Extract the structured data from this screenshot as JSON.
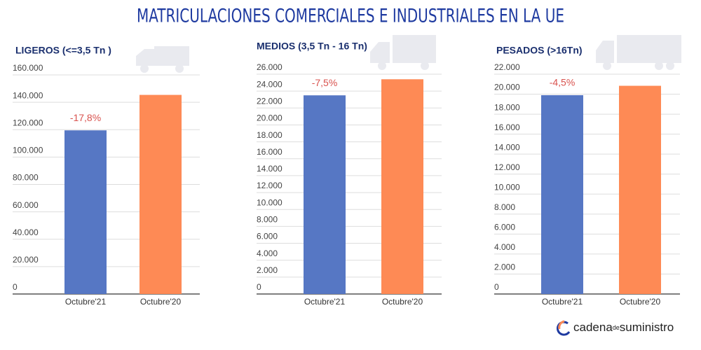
{
  "header": {
    "title": "MATRICULACIONES COMERCIALES E INDUSTRIALES EN LA UE"
  },
  "chart_data": [
    {
      "type": "bar",
      "title": "LIGEROS (<=3,5 Tn )",
      "categories": [
        "Octubre'21",
        "Octubre'20"
      ],
      "values": [
        119500,
        145400
      ],
      "colors": [
        "#5677c4",
        "#fe8a55"
      ],
      "annotation": "-17,8%",
      "ylim": [
        0,
        160000
      ],
      "grid": true,
      "yticks": [
        0,
        {
          "value": 20000,
          "label": "20.000"
        },
        {
          "value": 40000,
          "label": "40.000"
        },
        {
          "value": 60000,
          "label": "60.000"
        },
        {
          "value": 80000,
          "label": "80.000"
        },
        {
          "value": 100000,
          "label": "100.000"
        },
        {
          "value": 120000,
          "label": "120.000"
        },
        {
          "value": 140000,
          "label": "140.000"
        },
        {
          "value": 160000,
          "label": "160.000"
        }
      ]
    },
    {
      "type": "bar",
      "title": "MEDIOS (3,5 Tn - 16 Tn)",
      "categories": [
        "Octubre'21",
        "Octubre'20"
      ],
      "values": [
        23500,
        25400
      ],
      "colors": [
        "#5677c4",
        "#fe8a55"
      ],
      "annotation": "-7,5%",
      "ylim": [
        0,
        26000
      ],
      "grid": true,
      "yticks": [
        0,
        {
          "value": 2000,
          "label": "2.000"
        },
        {
          "value": 4000,
          "label": "4.000"
        },
        {
          "value": 6000,
          "label": "6.000"
        },
        {
          "value": 8000,
          "label": "8.000"
        },
        {
          "value": 10000,
          "label": "10.000"
        },
        {
          "value": 12000,
          "label": "12.000"
        },
        {
          "value": 14000,
          "label": "14.000"
        },
        {
          "value": 16000,
          "label": "16.000"
        },
        {
          "value": 18000,
          "label": "18.000"
        },
        {
          "value": 20000,
          "label": "20.000"
        },
        {
          "value": 22000,
          "label": "22.000"
        },
        {
          "value": 24000,
          "label": "24.000"
        },
        {
          "value": 26000,
          "label": "26.000"
        }
      ]
    },
    {
      "type": "bar",
      "title": "PESADOS (>16Tn)",
      "categories": [
        "Octubre'21",
        "Octubre'20"
      ],
      "values": [
        19900,
        20840
      ],
      "colors": [
        "#5677c4",
        "#fe8a55"
      ],
      "annotation": "-4,5%",
      "ylim": [
        0,
        22000
      ],
      "grid": true,
      "yticks": [
        0,
        {
          "value": 2000,
          "label": "2.000"
        },
        {
          "value": 4000,
          "label": "4.000"
        },
        {
          "value": 6000,
          "label": "6.000"
        },
        {
          "value": 8000,
          "label": "8.000"
        },
        {
          "value": 10000,
          "label": "10.000"
        },
        {
          "value": 12000,
          "label": "12.000"
        },
        {
          "value": 14000,
          "label": "14.000"
        },
        {
          "value": 16000,
          "label": "16.000"
        },
        {
          "value": 18000,
          "label": "18.000"
        },
        {
          "value": 20000,
          "label": "20.000"
        },
        {
          "value": 22000,
          "label": "22.000"
        }
      ]
    }
  ],
  "footer": {
    "brand_a": "cadena",
    "brand_b": "de",
    "brand_c": "suministro"
  }
}
